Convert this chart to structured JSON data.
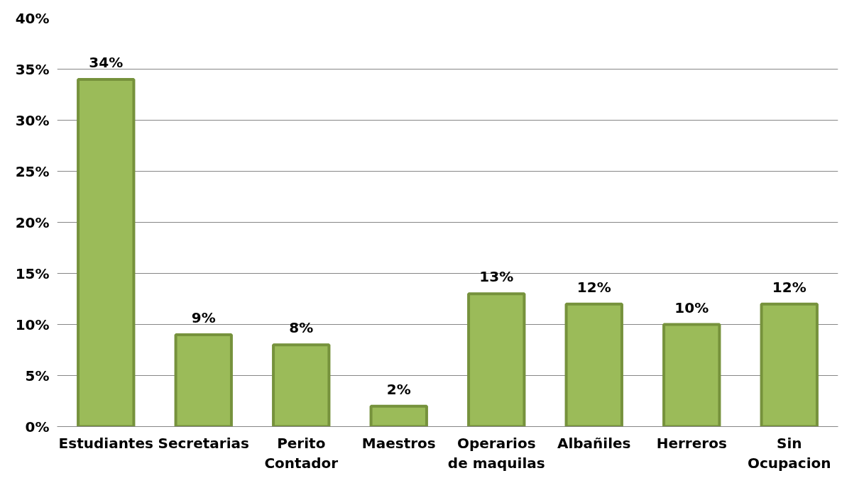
{
  "chart_data": {
    "type": "bar",
    "categories": [
      "Estudiantes",
      "Secretarias",
      "Perito\nContador",
      "Maestros",
      "Operarios\nde maquilas",
      "Albañiles",
      "Herreros",
      "Sin\nOcupacion"
    ],
    "values": [
      34,
      9,
      8,
      2,
      13,
      12,
      10,
      12
    ],
    "value_labels": [
      "34%",
      "9%",
      "8%",
      "2%",
      "13%",
      "12%",
      "10%",
      "12%"
    ],
    "color": "#9bbb59",
    "ylim": [
      0,
      40
    ],
    "yticks": [
      {
        "value": 0,
        "label": "0%"
      },
      {
        "value": 5,
        "label": "5%"
      },
      {
        "value": 10,
        "label": "10%"
      },
      {
        "value": 15,
        "label": "15%"
      },
      {
        "value": 20,
        "label": "20%"
      },
      {
        "value": 25,
        "label": "25%"
      },
      {
        "value": 30,
        "label": "30%"
      },
      {
        "value": 35,
        "label": "35%"
      },
      {
        "value": 40,
        "label": "40%"
      }
    ],
    "grid": "y"
  }
}
